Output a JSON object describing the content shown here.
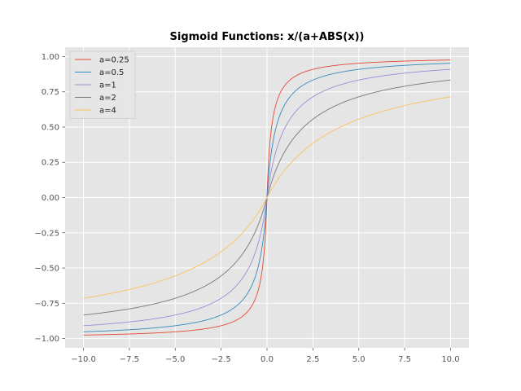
{
  "chart_data": {
    "type": "line",
    "title": "Sigmoid Functions: x/(a+ABS(x))",
    "xlabel": "",
    "ylabel": "",
    "xlim": [
      -11,
      11
    ],
    "ylim": [
      -1.066,
      1.066
    ],
    "xticks": [
      -10,
      -7.5,
      -5,
      -2.5,
      0,
      2.5,
      5,
      7.5,
      10
    ],
    "xtick_labels": [
      "−10.0",
      "−7.5",
      "−5.0",
      "−2.5",
      "0.0",
      "2.5",
      "5.0",
      "7.5",
      "10.0"
    ],
    "yticks": [
      -1,
      -0.75,
      -0.5,
      -0.25,
      0,
      0.25,
      0.5,
      0.75,
      1
    ],
    "ytick_labels": [
      "−1.00",
      "−0.75",
      "−0.50",
      "−0.25",
      "0.00",
      "0.25",
      "0.50",
      "0.75",
      "1.00"
    ],
    "grid": true,
    "legend_position": "top-left",
    "series": [
      {
        "name": "a=0.25",
        "a": 0.25,
        "color": "#E24A33"
      },
      {
        "name": "a=0.5",
        "a": 0.5,
        "color": "#348ABD"
      },
      {
        "name": "a=1",
        "a": 1,
        "color": "#988ED5"
      },
      {
        "name": "a=2",
        "a": 2,
        "color": "#777777"
      },
      {
        "name": "a=4",
        "a": 4,
        "color": "#FBC15E"
      }
    ],
    "x_range": [
      -10,
      10
    ]
  }
}
